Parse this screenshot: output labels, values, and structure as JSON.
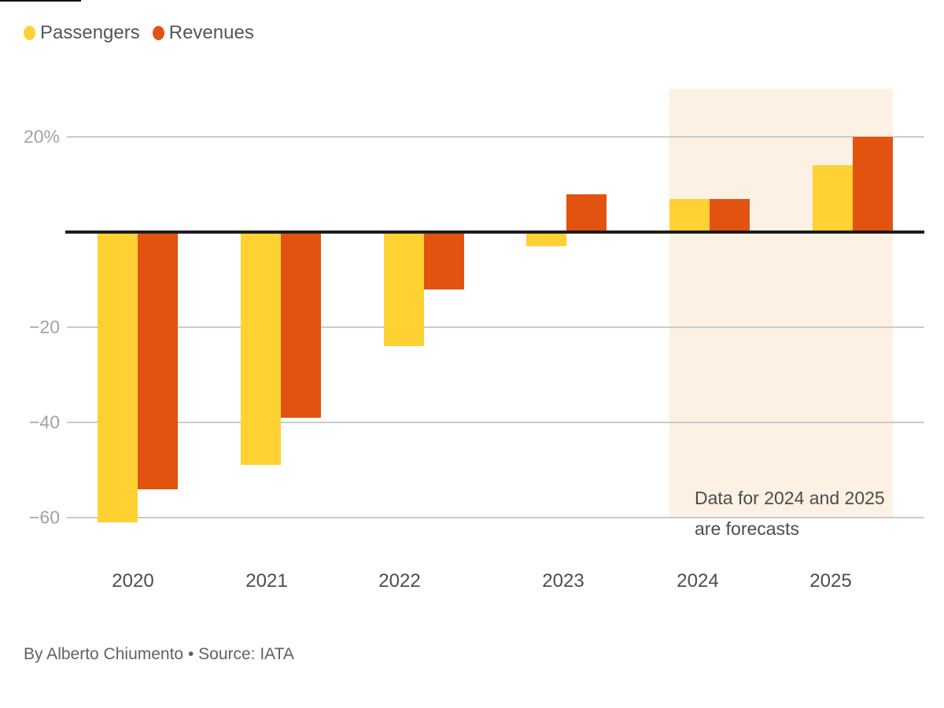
{
  "legend": {
    "items": [
      {
        "label": "Passengers",
        "color": "#FFD133"
      },
      {
        "label": "Revenues",
        "color": "#E2530F"
      }
    ]
  },
  "chart_data": {
    "type": "bar",
    "categories": [
      "2020",
      "2021",
      "2022",
      "2023",
      "2024",
      "2025"
    ],
    "series": [
      {
        "name": "Passengers",
        "color": "#FFD133",
        "values": [
          -61,
          -49,
          -24,
          -3,
          7,
          14
        ]
      },
      {
        "name": "Revenues",
        "color": "#E2530F",
        "values": [
          -54,
          -39,
          -12,
          8,
          7,
          20
        ]
      }
    ],
    "unit": "%",
    "baseline": 0,
    "y_axis": {
      "range": [
        -65,
        24
      ],
      "grid": true,
      "ticks": [
        {
          "value": 20,
          "label": "20%"
        },
        {
          "value": -20,
          "label": "−20"
        },
        {
          "value": -40,
          "label": "−40"
        },
        {
          "value": -60,
          "label": "−60"
        }
      ]
    },
    "legend_position": "top-left",
    "forecast": {
      "applies_to": [
        "2024",
        "2025"
      ],
      "shade_color": "#FCF1E3"
    }
  },
  "annotation": {
    "line1": "Data for 2024 and 2025",
    "line2": "are forecasts"
  },
  "footer": {
    "byline": "By Alberto Chiumento • Source: IATA"
  },
  "colors": {
    "passengers": "#FFD133",
    "revenues": "#E2530F",
    "forecast_shade": "#FCF1E3",
    "gridline": "#CBCBCB",
    "zero_line": "#1D1D1D",
    "axis_tick_text": "#A2A2A2",
    "x_label_text": "#4B4D50",
    "legend_text": "#54565A",
    "annotation_text": "#4C4C4C",
    "footer_text": "#626262"
  }
}
